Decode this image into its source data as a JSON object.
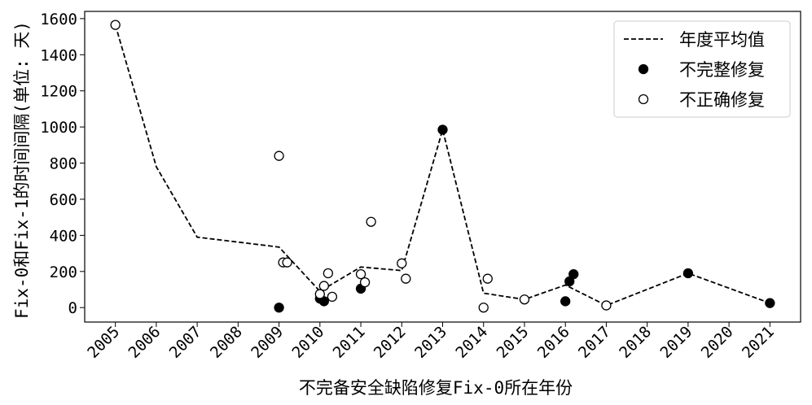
{
  "chart_data": {
    "type": "scatter",
    "xlabel": "不完备安全缺陷修复Fix-0所在年份",
    "ylabel": "Fix-0和Fix-1的时间间隔(单位: 天)",
    "xlim": [
      2004.25,
      2021.75
    ],
    "ylim": [
      -80,
      1640
    ],
    "xticks": [
      2005,
      2006,
      2007,
      2008,
      2009,
      2010,
      2011,
      2012,
      2013,
      2014,
      2015,
      2016,
      2017,
      2018,
      2019,
      2020,
      2021
    ],
    "xtick_labels": [
      "2005",
      "2006",
      "2007",
      "2008",
      "2009",
      "2010",
      "2011",
      "2012",
      "2013",
      "2014",
      "2015",
      "2016",
      "2017",
      "2018",
      "2019",
      "2020",
      "2021"
    ],
    "yticks": [
      0,
      200,
      400,
      600,
      800,
      1000,
      1200,
      1400,
      1600
    ],
    "ytick_labels": [
      "0",
      "200",
      "400",
      "600",
      "800",
      "1000",
      "1200",
      "1400",
      "1600"
    ],
    "grid": false,
    "legend_position": "top-right",
    "series": [
      {
        "name": "年度平均值",
        "kind": "line",
        "style": "dashed",
        "color": "#000000",
        "x": [
          2005,
          2006,
          2007,
          2009,
          2010,
          2011,
          2012,
          2013,
          2014,
          2015,
          2016,
          2017,
          2019,
          2021
        ],
        "y": [
          1565,
          780,
          390,
          335,
          90,
          225,
          205,
          985,
          80,
          45,
          125,
          12,
          190,
          25
        ]
      },
      {
        "name": "不完整修复",
        "kind": "scatter",
        "marker": "filled-circle",
        "color": "#000000",
        "x": [
          2009.0,
          2010.0,
          2010.1,
          2011.0,
          2013.0,
          2016.0,
          2016.1,
          2016.2,
          2019.0,
          2021.0
        ],
        "y": [
          0,
          50,
          35,
          105,
          985,
          35,
          145,
          185,
          190,
          25
        ]
      },
      {
        "name": "不正确修复",
        "kind": "scatter",
        "marker": "open-circle",
        "color": "#000000",
        "x": [
          2005.0,
          2009.0,
          2009.1,
          2009.2,
          2010.0,
          2010.1,
          2010.2,
          2010.3,
          2011.0,
          2011.1,
          2011.25,
          2012.0,
          2012.1,
          2014.0,
          2014.1,
          2015.0,
          2017.0
        ],
        "y": [
          1565,
          840,
          250,
          250,
          75,
          120,
          190,
          60,
          185,
          140,
          475,
          245,
          160,
          0,
          160,
          45,
          12
        ]
      }
    ]
  }
}
